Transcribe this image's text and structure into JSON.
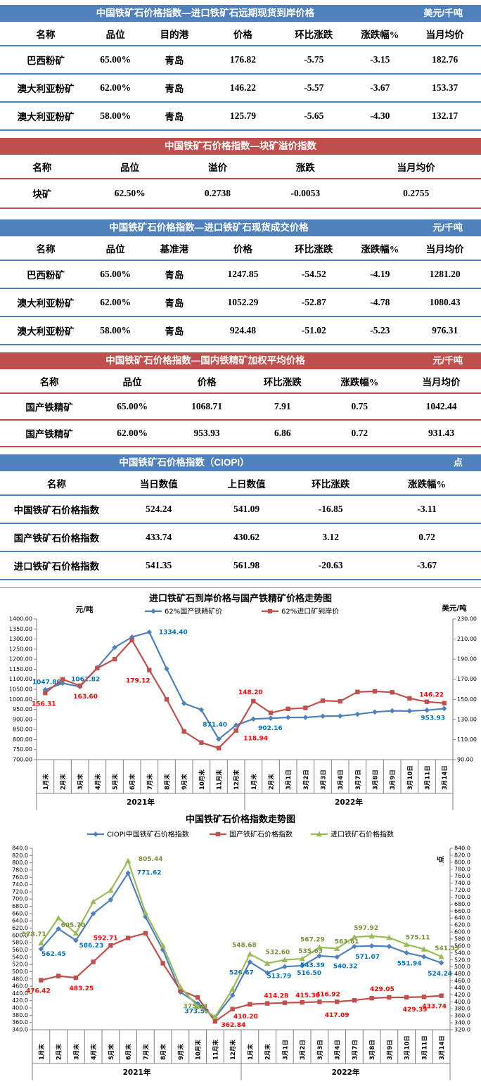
{
  "tables": {
    "t1": {
      "title": "中国铁矿石价格指数—进口铁矿石远期现货到岸价格",
      "unit": "美元/千吨",
      "headers": [
        "名称",
        "品位",
        "目的港",
        "价格",
        "环比涨跌",
        "涨跌幅%",
        "当月均价"
      ],
      "rows": [
        [
          "巴西粉矿",
          "65.00%",
          "青岛",
          "176.82",
          "-5.75",
          "-3.15",
          "182.76"
        ],
        [
          "澳大利亚粉矿",
          "62.00%",
          "青岛",
          "146.22",
          "-5.57",
          "-3.67",
          "153.37"
        ],
        [
          "澳大利亚粉矿",
          "58.00%",
          "青岛",
          "125.79",
          "-5.65",
          "-4.30",
          "132.17"
        ]
      ]
    },
    "t2": {
      "title": "中国铁矿石价格指数—块矿溢价指数",
      "headers": [
        "名称",
        "品位",
        "溢价",
        "涨跌",
        "当月均价"
      ],
      "rows": [
        [
          "块矿",
          "62.50%",
          "0.2738",
          "-0.0053",
          "0.2755"
        ]
      ]
    },
    "t3": {
      "title": "中国铁矿石价格指数—进口铁矿石现货成交价格",
      "unit": "元/千吨",
      "headers": [
        "名称",
        "品位",
        "基准港",
        "价格",
        "环比涨跌",
        "涨跌幅%",
        "当月均价"
      ],
      "rows": [
        [
          "巴西粉矿",
          "65.00%",
          "青岛",
          "1247.85",
          "-54.52",
          "-4.19",
          "1281.20"
        ],
        [
          "澳大利亚粉矿",
          "62.00%",
          "青岛",
          "1052.29",
          "-52.87",
          "-4.78",
          "1080.43"
        ],
        [
          "澳大利亚粉矿",
          "58.00%",
          "青岛",
          "924.48",
          "-51.02",
          "-5.23",
          "976.31"
        ]
      ]
    },
    "t4": {
      "title": "中国铁矿石价格指数—国内铁精矿加权平均价格",
      "unit": "元/千吨",
      "headers": [
        "名称",
        "品位",
        "价格",
        "环比涨跌",
        "涨跌幅%",
        "当月均价"
      ],
      "rows": [
        [
          "国产铁精矿",
          "65.00%",
          "1068.71",
          "7.91",
          "0.75",
          "1042.44"
        ],
        [
          "国产铁精矿",
          "62.00%",
          "953.93",
          "6.86",
          "0.72",
          "931.43"
        ]
      ]
    },
    "t5": {
      "title": "中国铁矿石价格指数（CIOPI）",
      "unit": "点",
      "headers": [
        "名称",
        "当日数值",
        "上日数值",
        "环比涨跌",
        "涨跌幅%"
      ],
      "rows": [
        [
          "中国铁矿石价格指数",
          "524.24",
          "541.09",
          "-16.85",
          "-3.11"
        ],
        [
          "国产铁矿石价格指数",
          "433.74",
          "430.62",
          "3.12",
          "0.72"
        ],
        [
          "进口铁矿石价格指数",
          "541.35",
          "561.98",
          "-20.63",
          "-3.67"
        ]
      ]
    }
  },
  "colors": {
    "blue_theme": "#4f81bd",
    "red_theme": "#c0504d",
    "series_blue": "#4f81bd",
    "series_red": "#c0504d",
    "series_green": "#9bbb59",
    "label_blue": "#0070c0",
    "label_red": "#ff0000",
    "label_green": "#76923c"
  },
  "chart_data": [
    {
      "type": "line",
      "title": "进口铁矿石到岸价格与国产铁精矿价格走势图",
      "left_axis": {
        "unit": "元/吨",
        "min": 700,
        "max": 1400,
        "step": 50,
        "decimals": 2
      },
      "right_axis": {
        "unit": "美元/吨",
        "min": 90,
        "max": 230,
        "step": 20,
        "decimals": 2
      },
      "categories": [
        "1月末",
        "2月末",
        "3月末",
        "4月末",
        "5月末",
        "6月末",
        "7月末",
        "8月末",
        "9月末",
        "10月末",
        "11月末",
        "12月末",
        "1月末",
        "2月末",
        "3月1日",
        "3月2日",
        "3月3日",
        "3月4日",
        "3月7日",
        "3月8日",
        "3月9日",
        "3月10日",
        "3月11日",
        "3月14日"
      ],
      "year_groups": [
        {
          "label": "2021年",
          "count": 12
        },
        {
          "label": "2022年",
          "count": 12
        }
      ],
      "legend_position": "top",
      "grid": "off",
      "series": [
        {
          "name": "62%国产铁精矿价",
          "axis": "left",
          "marker": "diamond",
          "color": "#4f81bd",
          "label_color": "#0070c0",
          "values": [
            1047.8,
            1080,
            1062.82,
            1158,
            1258,
            1310,
            1334.4,
            1152,
            980,
            948,
            802,
            871.4,
            902.16,
            906,
            910,
            910,
            916,
            917,
            926,
            937,
            943,
            942,
            946,
            953.93
          ],
          "point_labels": [
            {
              "i": 0,
              "t": "1047.80",
              "dx": 2,
              "dy": -8
            },
            {
              "i": 2,
              "t": "1062.82",
              "dx": 8,
              "dy": -8
            },
            {
              "i": 6,
              "t": "1334.40",
              "dx": 34,
              "dy": 3
            },
            {
              "i": 11,
              "t": "871.40",
              "dx": -30,
              "dy": 2
            },
            {
              "i": 12,
              "t": "902.16",
              "dx": 24,
              "dy": 16
            },
            {
              "i": 23,
              "t": "953.93",
              "dx": -16,
              "dy": 16
            }
          ]
        },
        {
          "name": "62%进口矿到岸价",
          "axis": "right",
          "marker": "square",
          "color": "#c0504d",
          "label_color": "#ff0000",
          "values": [
            156.31,
            170,
            163.6,
            181,
            190,
            209,
            179.12,
            150,
            118,
            107,
            101.5,
            118.94,
            148.2,
            136.5,
            140.5,
            141.5,
            148.6,
            148.0,
            157.4,
            158.0,
            157.0,
            151.0,
            147.6,
            146.22
          ],
          "point_labels": [
            {
              "i": 0,
              "t": "156.31",
              "dx": -2,
              "dy": 18
            },
            {
              "i": 2,
              "t": "163.60",
              "dx": 8,
              "dy": 18
            },
            {
              "i": 6,
              "t": "179.12",
              "dx": -16,
              "dy": 18
            },
            {
              "i": 11,
              "t": "118.94",
              "dx": 28,
              "dy": 14
            },
            {
              "i": 12,
              "t": "148.20",
              "dx": -4,
              "dy": -10
            },
            {
              "i": 23,
              "t": "146.22",
              "dx": -18,
              "dy": -9
            }
          ]
        }
      ]
    },
    {
      "type": "line",
      "title": "中国铁矿石价格指数走势图",
      "left_axis": {
        "unit": "",
        "min": 340,
        "max": 840,
        "step": 20,
        "decimals": 1
      },
      "right_axis": {
        "unit": "点",
        "min": 320,
        "max": 840,
        "step": 20,
        "decimals": 1
      },
      "categories": [
        "1月末",
        "2月末",
        "3月末",
        "4月末",
        "5月末",
        "6月末",
        "7月末",
        "8月末",
        "9月末",
        "10月末",
        "11月末",
        "12月末",
        "1月末",
        "2月末",
        "3月1日",
        "3月2日",
        "3月3日",
        "3月4日",
        "3月7日",
        "3月8日",
        "3月9日",
        "3月10日",
        "3月11日",
        "3月14日"
      ],
      "year_groups": [
        {
          "label": "2021年",
          "count": 12
        },
        {
          "label": "2022年",
          "count": 12
        }
      ],
      "legend_position": "top",
      "grid": "off",
      "series": [
        {
          "name": "CIOPI中国铁矿石价格指数",
          "axis": "left",
          "marker": "diamond",
          "color": "#4f81bd",
          "label_color": "#0070c0",
          "values": [
            562.45,
            618,
            586.23,
            660,
            698,
            771.62,
            651,
            560,
            444,
            412,
            373.59,
            435,
            526.67,
            497,
            513.79,
            516.5,
            543.39,
            540.32,
            569.5,
            571.07,
            569.5,
            551.94,
            541.09,
            524.24
          ],
          "point_labels": [
            {
              "i": 0,
              "t": "562.45",
              "dx": 18,
              "dy": 10
            },
            {
              "i": 2,
              "t": "586.23",
              "dx": 22,
              "dy": 10
            },
            {
              "i": 5,
              "t": "771.62",
              "dx": 30,
              "dy": 2
            },
            {
              "i": 10,
              "t": "373.59",
              "dx": -26,
              "dy": -6
            },
            {
              "i": 12,
              "t": "526.67",
              "dx": -12,
              "dy": 18
            },
            {
              "i": 14,
              "t": "513.79",
              "dx": -8,
              "dy": 16
            },
            {
              "i": 15,
              "t": "516.50",
              "dx": 10,
              "dy": 13
            },
            {
              "i": 16,
              "t": "543.39",
              "dx": -10,
              "dy": 16
            },
            {
              "i": 17,
              "t": "540.32",
              "dx": 12,
              "dy": 16
            },
            {
              "i": 19,
              "t": "571.07",
              "dx": -6,
              "dy": 18
            },
            {
              "i": 21,
              "t": "551.94",
              "dx": 4,
              "dy": 18
            },
            {
              "i": 23,
              "t": "524.24",
              "dx": -2,
              "dy": 18
            }
          ]
        },
        {
          "name": "国产铁矿石价格指数",
          "axis": "left",
          "marker": "square",
          "color": "#c0504d",
          "label_color": "#ff0000",
          "values": [
            476.42,
            488,
            483.25,
            527,
            572,
            592.71,
            606,
            523,
            449,
            429,
            362.84,
            397,
            410.2,
            412.5,
            414.28,
            415.3,
            416.92,
            417.09,
            421,
            427,
            429.05,
            429.39,
            430.62,
            433.74
          ],
          "point_labels": [
            {
              "i": 0,
              "t": "476.42",
              "dx": -4,
              "dy": 18
            },
            {
              "i": 2,
              "t": "483.25",
              "dx": 8,
              "dy": 18
            },
            {
              "i": 5,
              "t": "592.71",
              "dx": -32,
              "dy": 3
            },
            {
              "i": 10,
              "t": "362.84",
              "dx": 26,
              "dy": 8
            },
            {
              "i": 12,
              "t": "410.20",
              "dx": -6,
              "dy": 20
            },
            {
              "i": 14,
              "t": "414.28",
              "dx": -12,
              "dy": -7
            },
            {
              "i": 15,
              "t": "415.30",
              "dx": 8,
              "dy": -7
            },
            {
              "i": 16,
              "t": "416.92",
              "dx": 12,
              "dy": -8
            },
            {
              "i": 17,
              "t": "417.09",
              "dx": 0,
              "dy": 22
            },
            {
              "i": 20,
              "t": "429.05",
              "dx": -10,
              "dy": -9
            },
            {
              "i": 21,
              "t": "429.39",
              "dx": 12,
              "dy": 20
            },
            {
              "i": 23,
              "t": "433.74",
              "dx": -10,
              "dy": 18
            }
          ]
        },
        {
          "name": "进口铁矿石价格指数",
          "axis": "left",
          "marker": "triangle",
          "color": "#9bbb59",
          "label_color": "#76923c",
          "values": [
            578.71,
            648,
            605.7,
            693,
            724,
            805.44,
            662,
            572,
            458,
            404,
            375.63,
            452,
            548.68,
            523,
            532.6,
            535.63,
            567.29,
            563.61,
            595.5,
            597.92,
            594,
            575.11,
            561.98,
            541.35
          ],
          "point_labels": [
            {
              "i": 0,
              "t": "578.71",
              "dx": -10,
              "dy": -10
            },
            {
              "i": 2,
              "t": "605.70",
              "dx": -4,
              "dy": -9
            },
            {
              "i": 5,
              "t": "805.44",
              "dx": 32,
              "dy": 0
            },
            {
              "i": 10,
              "t": "375.63",
              "dx": -28,
              "dy": -12
            },
            {
              "i": 12,
              "t": "548.68",
              "dx": -8,
              "dy": -10
            },
            {
              "i": 14,
              "t": "532.60",
              "dx": -10,
              "dy": -8
            },
            {
              "i": 15,
              "t": "535.63",
              "dx": 12,
              "dy": -8
            },
            {
              "i": 16,
              "t": "567.29",
              "dx": -10,
              "dy": -8
            },
            {
              "i": 17,
              "t": "563.61",
              "dx": 14,
              "dy": -7
            },
            {
              "i": 19,
              "t": "597.92",
              "dx": -8,
              "dy": -9
            },
            {
              "i": 21,
              "t": "575.11",
              "dx": 16,
              "dy": -7
            },
            {
              "i": 23,
              "t": "541.35",
              "dx": 8,
              "dy": -9
            }
          ]
        }
      ]
    }
  ]
}
